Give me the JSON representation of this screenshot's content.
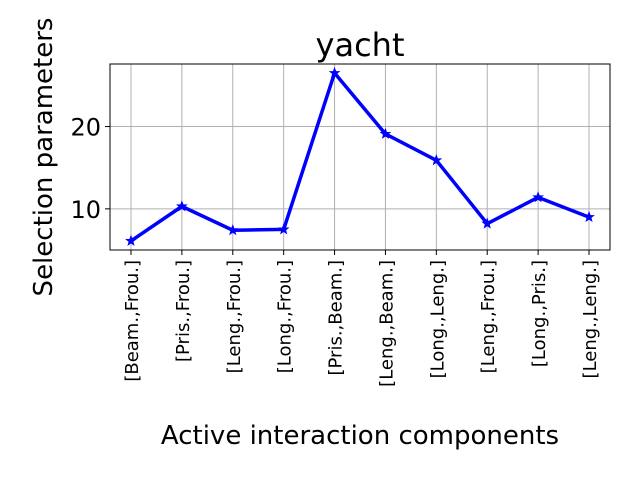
{
  "chart_data": {
    "type": "line",
    "title": "yacht",
    "xlabel": "Active interaction components",
    "ylabel": "Selection parameters",
    "categories": [
      "[Beam.,Frou.]",
      "[Pris.,Frou.]",
      "[Leng.,Frou.]",
      "[Long.,Frou.]",
      "[Pris.,Beam.]",
      "[Leng.,Beam.]",
      "[Long.,Leng.]",
      "[Leng.,Frou.]",
      "[Long.,Pris.]",
      "[Leng.,Leng.]"
    ],
    "series": [
      {
        "values": [
          6.1,
          10.3,
          7.4,
          7.5,
          26.5,
          19.1,
          15.9,
          8.2,
          11.4,
          9.0
        ],
        "color": "#0000ff",
        "marker": "star"
      }
    ],
    "yticks": [
      10,
      20
    ],
    "ylim": [
      5.0,
      27.6
    ],
    "grid": true
  }
}
